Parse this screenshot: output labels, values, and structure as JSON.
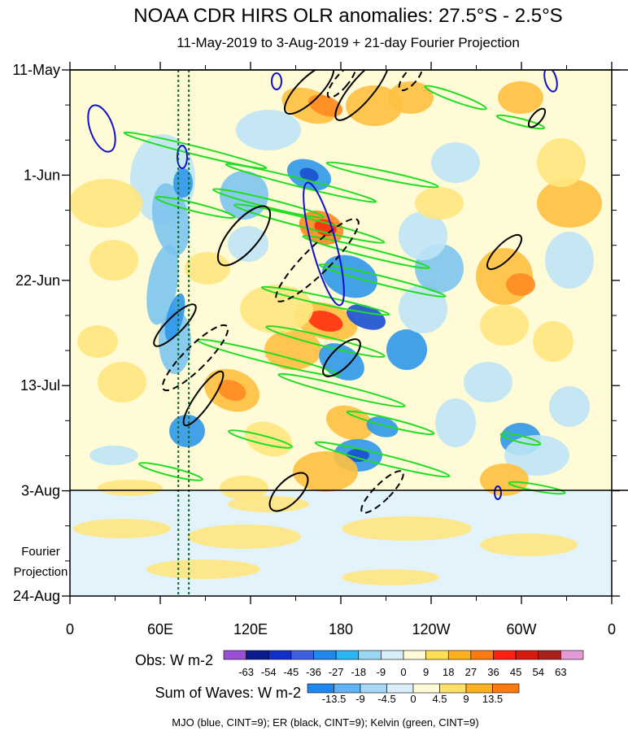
{
  "chart_data": {
    "type": "heatmap",
    "title": "NOAA CDR HIRS OLR anomalies: 27.5°S - 2.5°S",
    "subtitle": "11-May-2019 to 3-Aug-2019 + 21-day Fourier Projection",
    "x_axis": {
      "tick_labels": [
        "0",
        "60E",
        "120E",
        "180",
        "120W",
        "60W",
        "0"
      ],
      "range_deg_east": [
        0,
        360
      ]
    },
    "y_axis": {
      "tick_labels": [
        "11-May",
        "1-Jun",
        "22-Jun",
        "13-Jul",
        "3-Aug",
        "24-Aug"
      ],
      "range": [
        "2019-05-11",
        "2019-08-24"
      ],
      "reversed": true
    },
    "observation_end": "3-Aug",
    "projection_label": [
      "Fourier",
      "Projection"
    ],
    "obs_colorbar": {
      "title": "Obs: W m-2",
      "levels": [
        "-63",
        "-54",
        "-45",
        "-36",
        "-27",
        "-18",
        "-9",
        "0",
        "9",
        "18",
        "27",
        "36",
        "45",
        "54",
        "63"
      ],
      "colors": [
        "#9b4fd8",
        "#0b1a8f",
        "#1030c8",
        "#3b5fe0",
        "#1e88ee",
        "#29b6f6",
        "#9ad7f5",
        "#d6f0fa",
        "#fffbd6",
        "#ffdd55",
        "#ffb020",
        "#ff7a10",
        "#ff2010",
        "#d61a10",
        "#a8201a",
        "#e49ad8"
      ]
    },
    "waves_colorbar": {
      "title": "Sum of Waves: W m-2",
      "levels": [
        "-13.5",
        "-9",
        "-4.5",
        "0",
        "4.5",
        "9",
        "13.5"
      ],
      "colors": [
        "#1e88ee",
        "#5fb3f5",
        "#a7d6f7",
        "#d9eefa",
        "#fffbd6",
        "#ffe066",
        "#ffb020",
        "#ff7a10"
      ]
    },
    "contours_caption": "MJO (blue, CINT=9); ER (black, CINT=9); Kelvin (green, CINT=9)",
    "contour_colors": {
      "mjo": "#1010d0",
      "er": "#000000",
      "kelvin": "#22dd22"
    },
    "reference_lines": {
      "color": "#0a6a2a",
      "longitudes_deg_east": [
        72,
        79
      ]
    }
  }
}
